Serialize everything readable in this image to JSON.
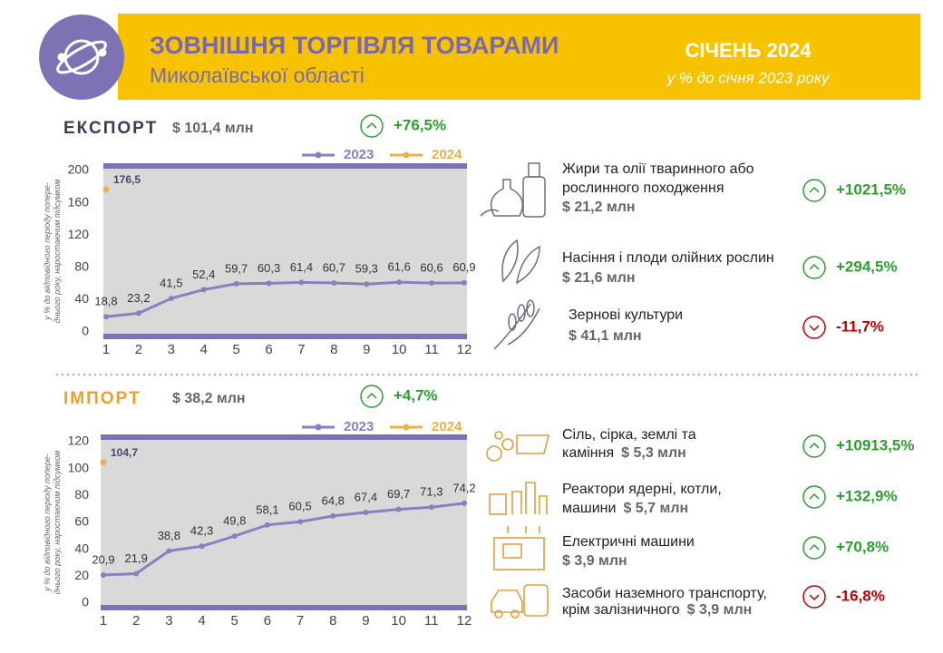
{
  "header": {
    "title": "ЗОВНІШНЯ ТОРГІВЛЯ ТОВАРАМИ",
    "subtitle": "Миколаївської області",
    "period": "СІЧЕНЬ 2024",
    "period_note": "у % до січня 2023 року"
  },
  "export": {
    "label": "ЕКСПОРТ",
    "total": "$ 101,4 млн",
    "change": "+76,5%",
    "trend": "up",
    "items": [
      {
        "name": [
          "Жири та олії тваринного або",
          "рослинного походження"
        ],
        "value": "$ 21,2 млн",
        "change": "+1021,5%",
        "trend": "up"
      },
      {
        "name": [
          "Насіння і плоди олійних рослин"
        ],
        "value": "$ 21,6 млн",
        "change": "+294,5%",
        "trend": "up"
      },
      {
        "name": [
          "Зернові культури"
        ],
        "value": "$ 41,1 млн",
        "change": "-11,7%",
        "trend": "down"
      }
    ]
  },
  "import": {
    "label": "ІМПОРТ",
    "total": "$ 38,2 млн",
    "change": "+4,7%",
    "trend": "up",
    "items": [
      {
        "name": [
          "Сіль, сірка, землі та",
          "каміння"
        ],
        "value": "$ 5,3 млн",
        "change": "+10913,5%",
        "trend": "up"
      },
      {
        "name": [
          "Реактори ядерні, котли,",
          "машини"
        ],
        "value": "$ 5,7 млн",
        "change": "+132,9%",
        "trend": "up"
      },
      {
        "name": [
          "Електричні машини"
        ],
        "value": "$ 3,9 млн",
        "change": "+70,8%",
        "trend": "up"
      },
      {
        "name": [
          "Засоби наземного транспорту,",
          "крім залізничного"
        ],
        "value": "$ 3,9 млн",
        "change": "-16,8%",
        "trend": "down"
      }
    ]
  },
  "chart_data": [
    {
      "type": "line",
      "y_label": [
        "у % до відповідного періоду попере-",
        "днього року, наростаючим підсумком"
      ],
      "x": [
        1,
        2,
        3,
        4,
        5,
        6,
        7,
        8,
        9,
        10,
        11,
        12
      ],
      "xlim": [
        1,
        12
      ],
      "xticks": [
        1,
        2,
        3,
        4,
        5,
        6,
        7,
        8,
        9,
        10,
        11,
        12
      ],
      "ylim": [
        0,
        200
      ],
      "yticks": [
        0,
        40,
        80,
        120,
        160,
        200
      ],
      "series": [
        {
          "name": "2023",
          "color": "#8a7fbf",
          "values": [
            18.8,
            23.2,
            41.5,
            52.4,
            59.7,
            60.3,
            61.4,
            60.7,
            59.3,
            61.6,
            60.6,
            60.9
          ],
          "value_labels": [
            "18,8",
            "23,2",
            "41,5",
            "52,4",
            "59,7",
            "60,3",
            "61,4",
            "60,7",
            "59,3",
            "61,6",
            "60,6",
            "60,9"
          ]
        },
        {
          "name": "2024",
          "color": "#eab04a",
          "values": [
            176.5,
            null,
            null,
            null,
            null,
            null,
            null,
            null,
            null,
            null,
            null,
            null
          ],
          "value_labels": [
            "176,5",
            null,
            null,
            null,
            null,
            null,
            null,
            null,
            null,
            null,
            null,
            null
          ]
        }
      ]
    },
    {
      "type": "line",
      "y_label": [
        "у % до відповідного періоду попере-",
        "днього року, наростаючим підсумком"
      ],
      "x": [
        1,
        2,
        3,
        4,
        5,
        6,
        7,
        8,
        9,
        10,
        11,
        12
      ],
      "xlim": [
        1,
        12
      ],
      "xticks": [
        1,
        2,
        3,
        4,
        5,
        6,
        7,
        8,
        9,
        10,
        11,
        12
      ],
      "ylim": [
        0,
        120
      ],
      "yticks": [
        0,
        20,
        40,
        60,
        80,
        100,
        120
      ],
      "series": [
        {
          "name": "2023",
          "color": "#8a7fbf",
          "values": [
            20.9,
            21.9,
            38.8,
            42.3,
            49.8,
            58.1,
            60.5,
            64.8,
            67.4,
            69.7,
            71.3,
            74.2
          ],
          "value_labels": [
            "20,9",
            "21,9",
            "38,8",
            "42,3",
            "49,8",
            "58,1",
            "60,5",
            "64,8",
            "67,4",
            "69,7",
            "71,3",
            "74,2"
          ]
        },
        {
          "name": "2024",
          "color": "#eab04a",
          "values": [
            104.7,
            null,
            null,
            null,
            null,
            null,
            null,
            null,
            null,
            null,
            null,
            null
          ],
          "value_labels": [
            "104,7",
            null,
            null,
            null,
            null,
            null,
            null,
            null,
            null,
            null,
            null,
            null
          ]
        }
      ]
    }
  ]
}
